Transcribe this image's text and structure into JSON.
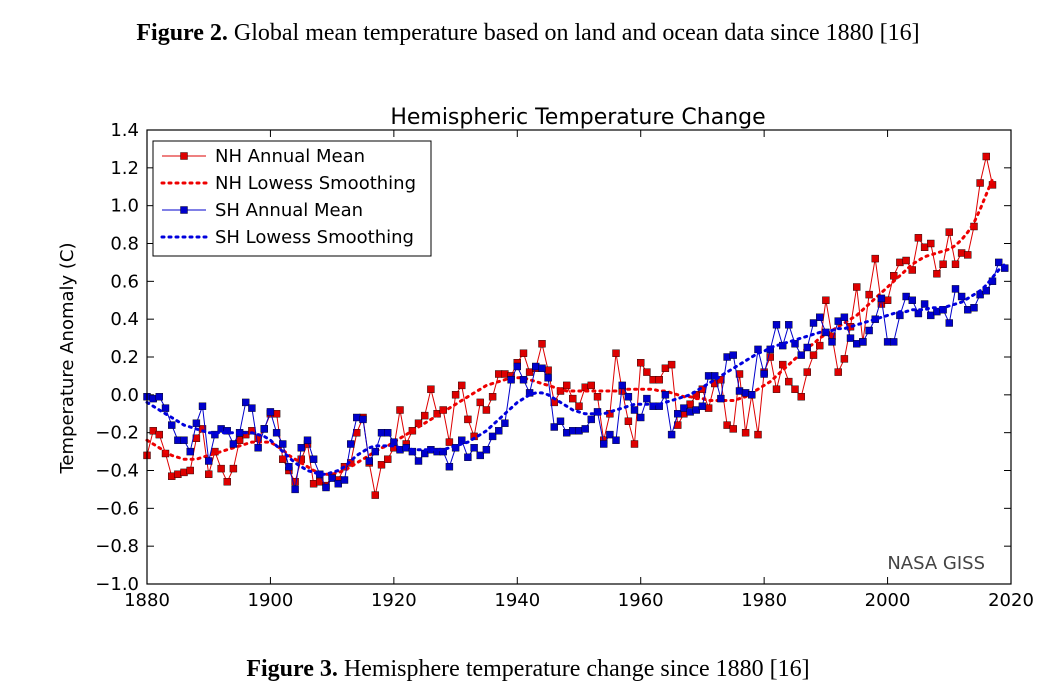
{
  "captions": {
    "top_label": "Figure 2.",
    "top_text": " Global mean temperature based on land and ocean data since 1880 [16]",
    "bottom_label": "Figure 3.",
    "bottom_text": " Hemisphere temperature change since 1880 [16]"
  },
  "chart_data": {
    "type": "line",
    "title": "Hemispheric Temperature Change",
    "xlabel": "",
    "ylabel": "Temperature Anomaly (C)",
    "xlim": [
      1880,
      2020
    ],
    "ylim": [
      -1.0,
      1.4
    ],
    "xticks": [
      "1880",
      "1900",
      "1920",
      "1940",
      "1960",
      "1980",
      "2000",
      "2020"
    ],
    "yticks": [
      "1.4",
      "1.2",
      "1.0",
      "0.8",
      "0.6",
      "0.4",
      "0.2",
      "0.0",
      "−0.2",
      "−0.4",
      "−0.6",
      "−0.8",
      "−1.0"
    ],
    "ytick_values": [
      1.4,
      1.2,
      1.0,
      0.8,
      0.6,
      0.4,
      0.2,
      0.0,
      -0.2,
      -0.4,
      -0.6,
      -0.8,
      -1.0
    ],
    "annotation": "NASA GISS",
    "legend_position": "top-left",
    "grid": false,
    "x_start": 1880,
    "series": [
      {
        "name": "NH Annual Mean",
        "color": "#dd0000",
        "style": "solid-square-markers",
        "values": [
          -0.32,
          -0.19,
          -0.21,
          -0.31,
          -0.43,
          -0.42,
          -0.41,
          -0.4,
          -0.23,
          -0.18,
          -0.42,
          -0.3,
          -0.39,
          -0.46,
          -0.39,
          -0.24,
          -0.21,
          -0.19,
          -0.23,
          -0.18,
          -0.1,
          -0.1,
          -0.34,
          -0.4,
          -0.46,
          -0.34,
          -0.26,
          -0.47,
          -0.46,
          -0.48,
          -0.43,
          -0.45,
          -0.38,
          -0.36,
          -0.2,
          -0.12,
          -0.36,
          -0.53,
          -0.37,
          -0.34,
          -0.28,
          -0.08,
          -0.26,
          -0.19,
          -0.15,
          -0.11,
          0.03,
          -0.1,
          -0.08,
          -0.25,
          0.0,
          0.05,
          -0.13,
          -0.22,
          -0.04,
          -0.08,
          -0.01,
          0.11,
          0.11,
          0.1,
          0.17,
          0.22,
          0.12,
          0.14,
          0.27,
          0.13,
          -0.04,
          0.02,
          0.05,
          -0.02,
          -0.06,
          0.04,
          0.05,
          -0.01,
          -0.24,
          -0.1,
          0.22,
          0.02,
          -0.14,
          -0.26,
          0.17,
          0.12,
          0.08,
          0.08,
          0.14,
          0.16,
          -0.16,
          -0.1,
          -0.05,
          0.0,
          0.03,
          -0.07,
          0.06,
          0.08,
          -0.16,
          -0.18,
          0.11,
          -0.2,
          0.0,
          -0.21,
          0.12,
          0.2,
          0.03,
          0.16,
          0.07,
          0.03,
          -0.01,
          0.12,
          0.21,
          0.26,
          0.5,
          0.31,
          0.12,
          0.19,
          0.36,
          0.57,
          0.28,
          0.53,
          0.72,
          0.48,
          0.5,
          0.63,
          0.7,
          0.71,
          0.66,
          0.83,
          0.78,
          0.8,
          0.64,
          0.69,
          0.86,
          0.69,
          0.75,
          0.74,
          0.89,
          1.12,
          1.26,
          1.11
        ]
      },
      {
        "name": "NH Lowess Smoothing",
        "color": "#ee0000",
        "style": "dotted",
        "values": [
          -0.24,
          -0.26,
          -0.28,
          -0.3,
          -0.32,
          -0.33,
          -0.34,
          -0.34,
          -0.34,
          -0.33,
          -0.32,
          -0.31,
          -0.3,
          -0.29,
          -0.28,
          -0.27,
          -0.26,
          -0.25,
          -0.25,
          -0.25,
          -0.25,
          -0.27,
          -0.29,
          -0.32,
          -0.34,
          -0.36,
          -0.38,
          -0.4,
          -0.41,
          -0.42,
          -0.42,
          -0.41,
          -0.4,
          -0.38,
          -0.36,
          -0.34,
          -0.32,
          -0.3,
          -0.28,
          -0.27,
          -0.25,
          -0.23,
          -0.21,
          -0.19,
          -0.17,
          -0.15,
          -0.13,
          -0.11,
          -0.09,
          -0.07,
          -0.05,
          -0.03,
          -0.01,
          0.01,
          0.03,
          0.05,
          0.06,
          0.07,
          0.08,
          0.09,
          0.09,
          0.09,
          0.08,
          0.07,
          0.06,
          0.05,
          0.04,
          0.03,
          0.02,
          0.02,
          0.02,
          0.02,
          0.02,
          0.02,
          0.02,
          0.02,
          0.02,
          0.03,
          0.03,
          0.03,
          0.03,
          0.03,
          0.03,
          0.02,
          0.02,
          0.01,
          0.0,
          -0.01,
          -0.01,
          -0.02,
          -0.02,
          -0.03,
          -0.03,
          -0.03,
          -0.03,
          -0.03,
          -0.02,
          -0.01,
          0.01,
          0.03,
          0.05,
          0.07,
          0.1,
          0.13,
          0.16,
          0.19,
          0.22,
          0.25,
          0.27,
          0.3,
          0.32,
          0.34,
          0.36,
          0.38,
          0.4,
          0.42,
          0.45,
          0.48,
          0.51,
          0.54,
          0.57,
          0.6,
          0.63,
          0.66,
          0.69,
          0.71,
          0.73,
          0.74,
          0.75,
          0.76,
          0.77,
          0.79,
          0.82,
          0.86,
          0.91,
          0.98,
          1.06,
          1.14
        ]
      },
      {
        "name": "SH Annual Mean",
        "color": "#0000cc",
        "style": "solid-square-markers",
        "values": [
          -0.01,
          -0.02,
          -0.01,
          -0.07,
          -0.16,
          -0.24,
          -0.24,
          -0.3,
          -0.15,
          -0.06,
          -0.35,
          -0.21,
          -0.18,
          -0.19,
          -0.26,
          -0.2,
          -0.04,
          -0.07,
          -0.28,
          -0.18,
          -0.09,
          -0.2,
          -0.26,
          -0.38,
          -0.5,
          -0.28,
          -0.24,
          -0.34,
          -0.42,
          -0.49,
          -0.44,
          -0.47,
          -0.45,
          -0.26,
          -0.12,
          -0.13,
          -0.35,
          -0.3,
          -0.2,
          -0.2,
          -0.25,
          -0.29,
          -0.28,
          -0.3,
          -0.35,
          -0.31,
          -0.29,
          -0.3,
          -0.3,
          -0.38,
          -0.28,
          -0.24,
          -0.33,
          -0.28,
          -0.32,
          -0.29,
          -0.22,
          -0.19,
          -0.15,
          0.08,
          0.15,
          0.08,
          0.01,
          0.15,
          0.14,
          0.09,
          -0.17,
          -0.14,
          -0.2,
          -0.19,
          -0.19,
          -0.18,
          -0.13,
          -0.09,
          -0.26,
          -0.21,
          -0.24,
          0.05,
          -0.01,
          -0.08,
          -0.12,
          -0.02,
          -0.06,
          -0.06,
          0.0,
          -0.21,
          -0.1,
          -0.07,
          -0.09,
          -0.08,
          -0.06,
          0.1,
          0.1,
          -0.02,
          0.2,
          0.21,
          0.02,
          0.01,
          0.0,
          0.24,
          0.11,
          0.24,
          0.37,
          0.26,
          0.37,
          0.27,
          0.21,
          0.25,
          0.38,
          0.41,
          0.33,
          0.28,
          0.39,
          0.41,
          0.3,
          0.27,
          0.28,
          0.34,
          0.4,
          0.51,
          0.28,
          0.28,
          0.42,
          0.52,
          0.5,
          0.43,
          0.48,
          0.42,
          0.44,
          0.45,
          0.38,
          0.56,
          0.52,
          0.45,
          0.46,
          0.53,
          0.55,
          0.6,
          0.7,
          0.67
        ]
      },
      {
        "name": "SH Lowess Smoothing",
        "color": "#0000dd",
        "style": "dotted",
        "values": [
          -0.04,
          -0.06,
          -0.08,
          -0.1,
          -0.12,
          -0.14,
          -0.16,
          -0.17,
          -0.18,
          -0.19,
          -0.2,
          -0.2,
          -0.2,
          -0.2,
          -0.2,
          -0.2,
          -0.2,
          -0.2,
          -0.21,
          -0.22,
          -0.24,
          -0.27,
          -0.3,
          -0.33,
          -0.36,
          -0.38,
          -0.4,
          -0.41,
          -0.42,
          -0.42,
          -0.41,
          -0.4,
          -0.38,
          -0.35,
          -0.32,
          -0.3,
          -0.28,
          -0.27,
          -0.27,
          -0.27,
          -0.27,
          -0.28,
          -0.28,
          -0.29,
          -0.29,
          -0.29,
          -0.29,
          -0.29,
          -0.29,
          -0.28,
          -0.27,
          -0.26,
          -0.25,
          -0.23,
          -0.21,
          -0.19,
          -0.16,
          -0.13,
          -0.1,
          -0.07,
          -0.04,
          -0.02,
          0.0,
          0.01,
          0.01,
          0.0,
          -0.02,
          -0.04,
          -0.06,
          -0.08,
          -0.09,
          -0.1,
          -0.1,
          -0.1,
          -0.1,
          -0.09,
          -0.08,
          -0.07,
          -0.06,
          -0.05,
          -0.05,
          -0.05,
          -0.05,
          -0.05,
          -0.04,
          -0.03,
          -0.02,
          -0.01,
          0.0,
          0.02,
          0.04,
          0.06,
          0.08,
          0.1,
          0.12,
          0.14,
          0.16,
          0.18,
          0.2,
          0.22,
          0.23,
          0.25,
          0.26,
          0.27,
          0.28,
          0.29,
          0.3,
          0.31,
          0.32,
          0.33,
          0.34,
          0.34,
          0.35,
          0.35,
          0.36,
          0.37,
          0.38,
          0.39,
          0.4,
          0.41,
          0.42,
          0.43,
          0.44,
          0.44,
          0.45,
          0.45,
          0.45,
          0.46,
          0.46,
          0.46,
          0.47,
          0.48,
          0.49,
          0.51,
          0.53,
          0.55,
          0.58,
          0.62,
          0.66,
          0.69
        ]
      }
    ]
  }
}
